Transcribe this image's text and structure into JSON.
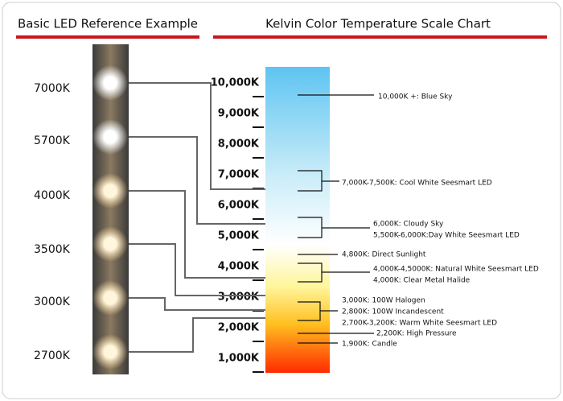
{
  "header": {
    "left_title": "Basic LED Reference Example",
    "right_title": "Kelvin Color Temperature Scale Chart"
  },
  "led_labels": [
    "7000K",
    "5700K",
    "4000K",
    "3500K",
    "3000K",
    "2700K"
  ],
  "scale_labels": [
    "10,000K",
    "9,000K",
    "8,000K",
    "7,000K",
    "6,000K",
    "5,000K",
    "4,000K",
    "3,000K",
    "2,000K",
    "1,000K"
  ],
  "annotations": [
    "10,000K +: Blue Sky",
    "7,000K-7,500K: Cool White Seesmart LED",
    "6,000K: Cloudy Sky",
    "5,500K-6,000K:Day White Seesmart LED",
    "4,800K: Direct Sunlight",
    "4,000K-4,5000K: Natural White Seesmart LED",
    "4,000K: Clear Metal Halide",
    "3,000K: 100W Halogen",
    "2,800K: 100W Incandescent",
    "2,700K-3,200K: Warm White Seesmart LED",
    "2,200K: High Pressure",
    "1,900K: Candle"
  ]
}
